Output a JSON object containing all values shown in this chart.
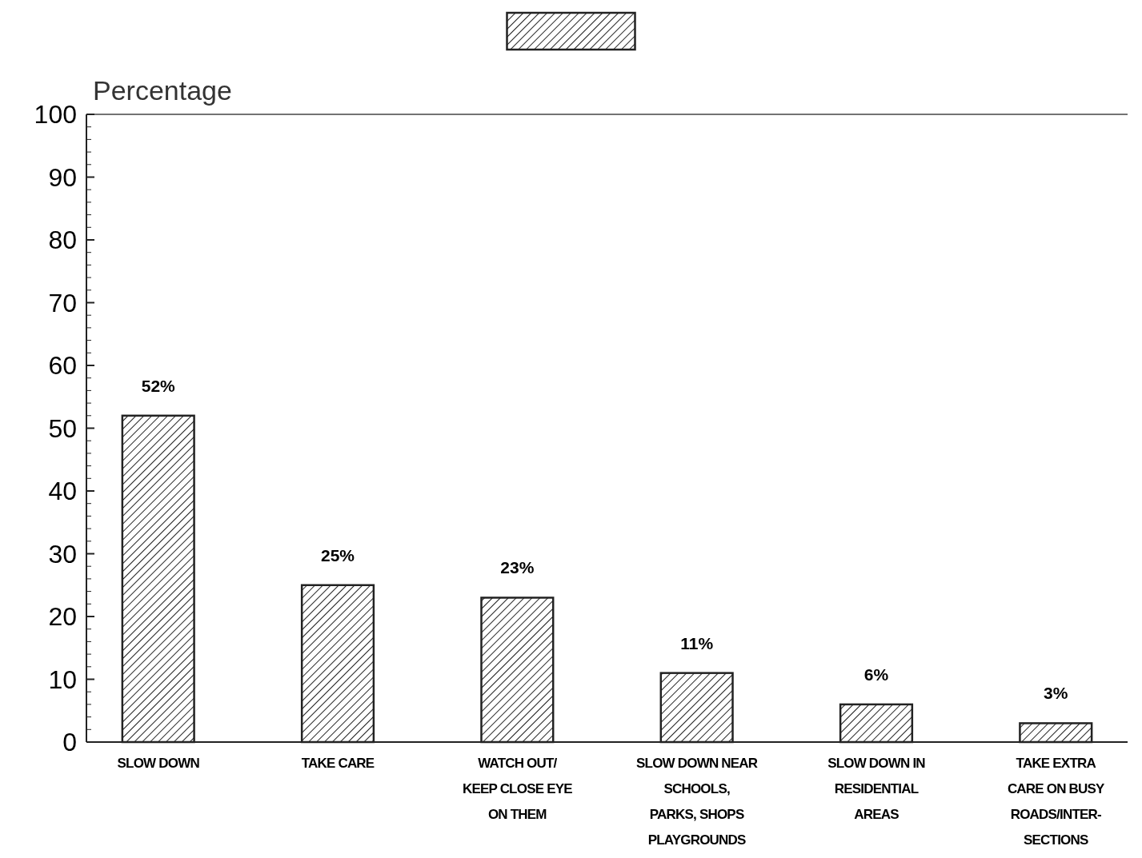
{
  "chart_data": {
    "type": "bar",
    "ylabel": "Percentage",
    "categories": [
      "SLOW DOWN",
      "TAKE CARE",
      "WATCH OUT/ KEEP CLOSE EYE ON THEM",
      "SLOW DOWN NEAR SCHOOLS, PARKS, SHOPS PLAYGROUNDS",
      "SLOW DOWN IN RESIDENTIAL AREAS",
      "TAKE EXTRA CARE ON BUSY ROADS/INTER-SECTIONS"
    ],
    "values": [
      52,
      25,
      23,
      11,
      6,
      3
    ],
    "value_labels": [
      "52%",
      "25%",
      "23%",
      "11%",
      "6%",
      "3%"
    ],
    "color": "#222222",
    "ylim": [
      0,
      100
    ],
    "yticks": [
      0,
      10,
      20,
      30,
      40,
      50,
      60,
      70,
      80,
      90,
      100
    ],
    "grid": false
  }
}
